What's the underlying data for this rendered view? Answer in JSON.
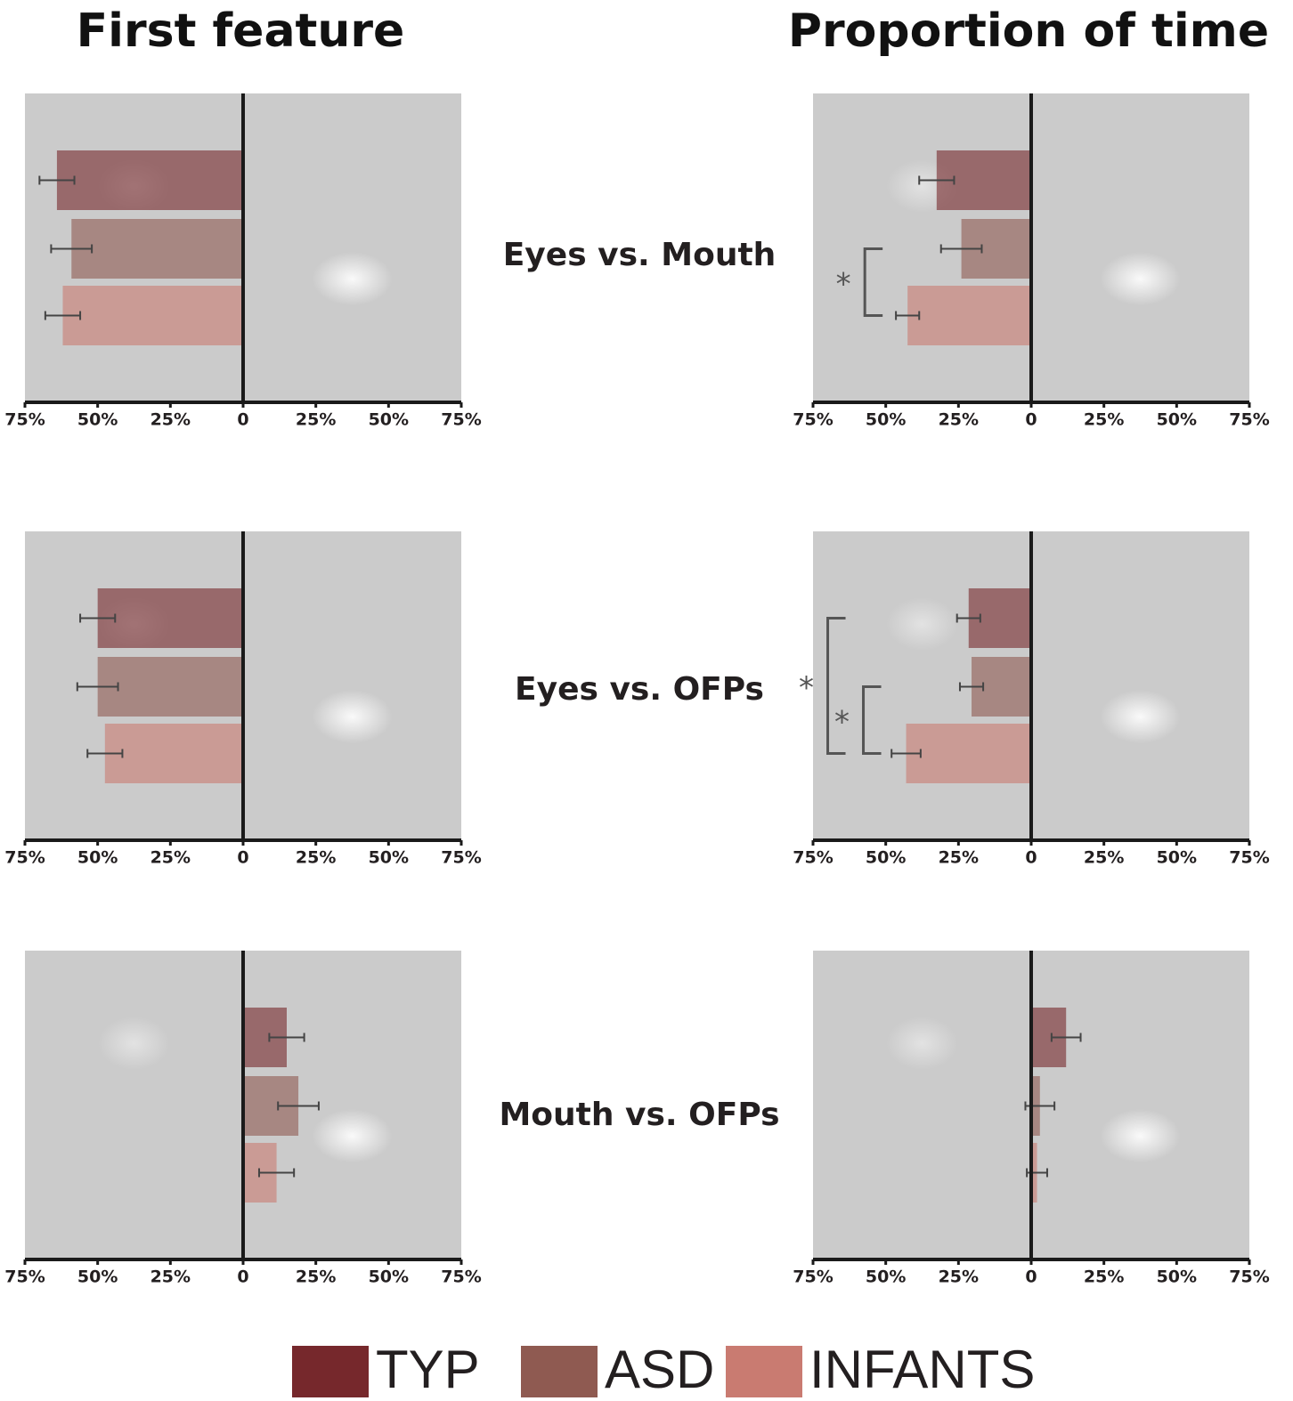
{
  "column_titles": [
    "First feature",
    "Proportion of time"
  ],
  "row_labels": [
    "Eyes vs. Mouth",
    "Eyes vs. OFPs",
    "Mouth vs. OFPs"
  ],
  "legend": [
    {
      "name": "TYP",
      "color": "#76282c"
    },
    {
      "name": "ASD",
      "color": "#8f5a51"
    },
    {
      "name": "INFANTS",
      "color": "#c97b71"
    }
  ],
  "chart_data": [
    {
      "type": "bar",
      "orientation": "horizontal",
      "values": [
        -64,
        -59,
        -62
      ],
      "errors": [
        6,
        7,
        6
      ],
      "xlim": [
        -75,
        75
      ],
      "xticks": [
        {
          "value": -75,
          "label": "75%"
        },
        {
          "value": -50,
          "label": "50%"
        },
        {
          "value": -25,
          "label": "25%"
        },
        0,
        {
          "value": 25,
          "label": "25%"
        },
        {
          "value": 50,
          "label": "50%"
        },
        {
          "value": 75,
          "label": "75%"
        }
      ]
    },
    {
      "type": "bar",
      "orientation": "horizontal",
      "values": [
        -32.5,
        -24,
        -42.5
      ],
      "errors": [
        6,
        7,
        4
      ],
      "xlim": [
        -75,
        75
      ],
      "xticks": [
        {
          "value": -75,
          "label": "75%"
        },
        {
          "value": -50,
          "label": "50%"
        },
        {
          "value": -25,
          "label": "25%"
        },
        0,
        {
          "value": 25,
          "label": "25%"
        },
        {
          "value": 50,
          "label": "50%"
        },
        {
          "value": 75,
          "label": "75%"
        }
      ],
      "brackets": [
        {
          "label": "*",
          "from": 1,
          "to": 2
        }
      ]
    },
    {
      "type": "bar",
      "orientation": "horizontal",
      "values": [
        -50,
        -50,
        -47.5
      ],
      "errors": [
        6,
        7,
        6
      ],
      "xlim": [
        -75,
        75
      ],
      "xticks": [
        {
          "value": -75,
          "label": "75%"
        },
        {
          "value": -50,
          "label": "50%"
        },
        {
          "value": -25,
          "label": "25%"
        },
        0,
        {
          "value": 25,
          "label": "25%"
        },
        {
          "value": 50,
          "label": "50%"
        },
        {
          "value": 75,
          "label": "75%"
        }
      ]
    },
    {
      "type": "bar",
      "orientation": "horizontal",
      "values": [
        -21.5,
        -20.5,
        -43
      ],
      "errors": [
        4,
        4,
        5
      ],
      "xlim": [
        -75,
        75
      ],
      "xticks": [
        {
          "value": -75,
          "label": "75%"
        },
        {
          "value": -50,
          "label": "50%"
        },
        {
          "value": -25,
          "label": "25%"
        },
        0,
        {
          "value": 25,
          "label": "25%"
        },
        {
          "value": 50,
          "label": "50%"
        },
        {
          "value": 75,
          "label": "75%"
        }
      ],
      "brackets": [
        {
          "label": "*",
          "from": 1,
          "to": 2
        },
        {
          "label": "*",
          "from": 0,
          "to": 2
        }
      ]
    },
    {
      "type": "bar",
      "orientation": "horizontal",
      "values": [
        15,
        19,
        11.5
      ],
      "errors": [
        6,
        7,
        6
      ],
      "xlim": [
        -75,
        75
      ],
      "xticks": [
        {
          "value": -75,
          "label": "75%"
        },
        {
          "value": -50,
          "label": "50%"
        },
        {
          "value": -25,
          "label": "25%"
        },
        0,
        {
          "value": 25,
          "label": "25%"
        },
        {
          "value": 50,
          "label": "50%"
        },
        {
          "value": 75,
          "label": "75%"
        }
      ]
    },
    {
      "type": "bar",
      "orientation": "horizontal",
      "values": [
        12,
        3,
        2
      ],
      "errors": [
        5,
        5,
        3.5
      ],
      "xlim": [
        -75,
        75
      ],
      "xticks": [
        {
          "value": -75,
          "label": "75%"
        },
        {
          "value": -50,
          "label": "50%"
        },
        {
          "value": -25,
          "label": "25%"
        },
        0,
        {
          "value": 25,
          "label": "25%"
        },
        {
          "value": 50,
          "label": "50%"
        },
        {
          "value": 75,
          "label": "75%"
        }
      ]
    }
  ]
}
